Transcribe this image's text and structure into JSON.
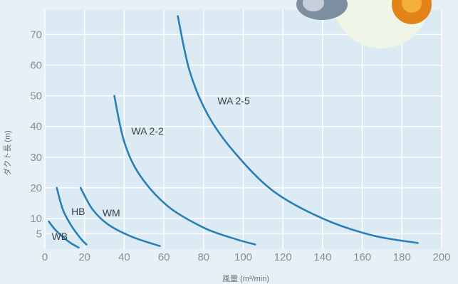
{
  "chart_data": {
    "type": "line",
    "xlabel": "風量 (m³/min)",
    "ylabel": "ダクト長 (m)",
    "xlim": [
      0,
      200
    ],
    "ylim": [
      0,
      78
    ],
    "x_ticks": [
      "0",
      "20",
      "40",
      "60",
      "80",
      "100",
      "120",
      "140",
      "160",
      "180",
      "200"
    ],
    "y_ticks": [
      "5",
      "10",
      "20",
      "30",
      "40",
      "50",
      "60",
      "70"
    ],
    "grid": true,
    "series": [
      {
        "name": "WB",
        "points": [
          [
            2,
            9
          ],
          [
            5,
            6.5
          ],
          [
            9,
            4
          ],
          [
            13,
            2
          ],
          [
            17,
            0.5
          ]
        ]
      },
      {
        "name": "HB",
        "points": [
          [
            6,
            20
          ],
          [
            9,
            13
          ],
          [
            13,
            8
          ],
          [
            18,
            3.5
          ],
          [
            21,
            1.5
          ]
        ]
      },
      {
        "name": "WM",
        "points": [
          [
            18,
            20
          ],
          [
            24,
            13
          ],
          [
            32,
            8
          ],
          [
            44,
            4
          ],
          [
            58,
            1
          ]
        ]
      },
      {
        "name": "WA 2-2",
        "points": [
          [
            35,
            50
          ],
          [
            40,
            35
          ],
          [
            48,
            24
          ],
          [
            62,
            14
          ],
          [
            80,
            7
          ],
          [
            95,
            3.5
          ],
          [
            106,
            1.5
          ]
        ]
      },
      {
        "name": "WA 2-5",
        "points": [
          [
            67,
            76
          ],
          [
            73,
            58
          ],
          [
            82,
            44
          ],
          [
            95,
            32
          ],
          [
            115,
            19
          ],
          [
            140,
            10
          ],
          [
            165,
            4.5
          ],
          [
            188,
            2
          ]
        ]
      }
    ]
  }
}
